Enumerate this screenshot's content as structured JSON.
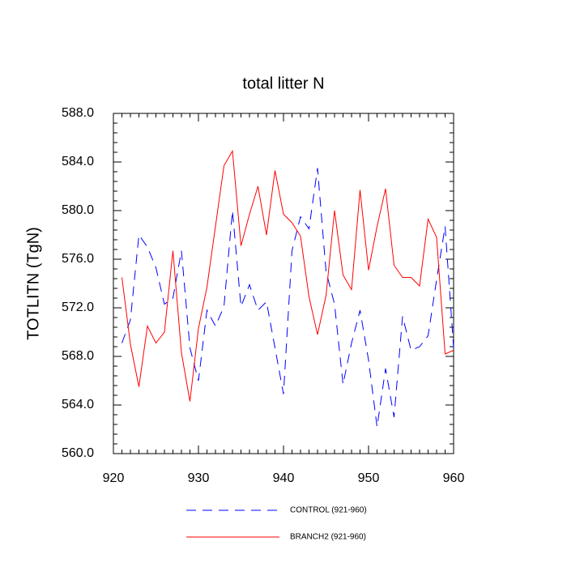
{
  "chart_data": {
    "type": "line",
    "title": "total litter N",
    "y_label": "TOTLITN  (TgN)",
    "x": [
      921,
      922,
      923,
      924,
      925,
      926,
      927,
      928,
      929,
      930,
      931,
      932,
      933,
      934,
      935,
      936,
      937,
      938,
      939,
      940,
      941,
      942,
      943,
      944,
      945,
      946,
      947,
      948,
      949,
      950,
      951,
      952,
      953,
      954,
      955,
      956,
      957,
      958,
      959,
      960
    ],
    "series": [
      {
        "name": "CONTROL (921-960)",
        "color": "#0000ff",
        "dashed": true,
        "values": [
          569.1,
          571.0,
          578.0,
          577.0,
          575.3,
          572.3,
          572.8,
          576.7,
          568.7,
          566.0,
          571.8,
          570.5,
          572.1,
          580.0,
          572.1,
          573.9,
          571.8,
          572.5,
          568.7,
          564.9,
          576.7,
          579.5,
          578.5,
          583.5,
          575.0,
          572.3,
          565.7,
          569.1,
          571.8,
          567.7,
          562.2,
          567.0,
          563.0,
          571.3,
          568.5,
          568.8,
          569.7,
          574.3,
          578.7,
          568.7
        ]
      },
      {
        "name": "BRANCH2 (921-960)",
        "color": "#ff0000",
        "dashed": false,
        "values": [
          574.5,
          569.0,
          565.5,
          570.5,
          569.1,
          570.0,
          576.7,
          568.3,
          564.3,
          570.3,
          573.7,
          578.7,
          583.7,
          584.9,
          577.1,
          579.7,
          582.0,
          578.0,
          583.3,
          579.7,
          579.0,
          577.9,
          572.9,
          569.8,
          573.0,
          580.0,
          574.7,
          573.5,
          581.7,
          575.1,
          578.7,
          581.8,
          575.5,
          574.5,
          574.5,
          573.8,
          579.3,
          577.8,
          568.2,
          568.5
        ]
      }
    ],
    "xlim": [
      920,
      960
    ],
    "xticks": [
      920,
      930,
      940,
      950,
      960
    ],
    "ylim": [
      560,
      588
    ],
    "yticks": [
      {
        "value": 560,
        "label": "560.0"
      },
      {
        "value": 564,
        "label": "564.0"
      },
      {
        "value": 568,
        "label": "568.0"
      },
      {
        "value": 572,
        "label": "572.0"
      },
      {
        "value": 576,
        "label": "576.0"
      },
      {
        "value": 580,
        "label": "580.0"
      },
      {
        "value": 584,
        "label": "584.0"
      },
      {
        "value": 588,
        "label": "588.0"
      }
    ],
    "legend": "bottom"
  }
}
